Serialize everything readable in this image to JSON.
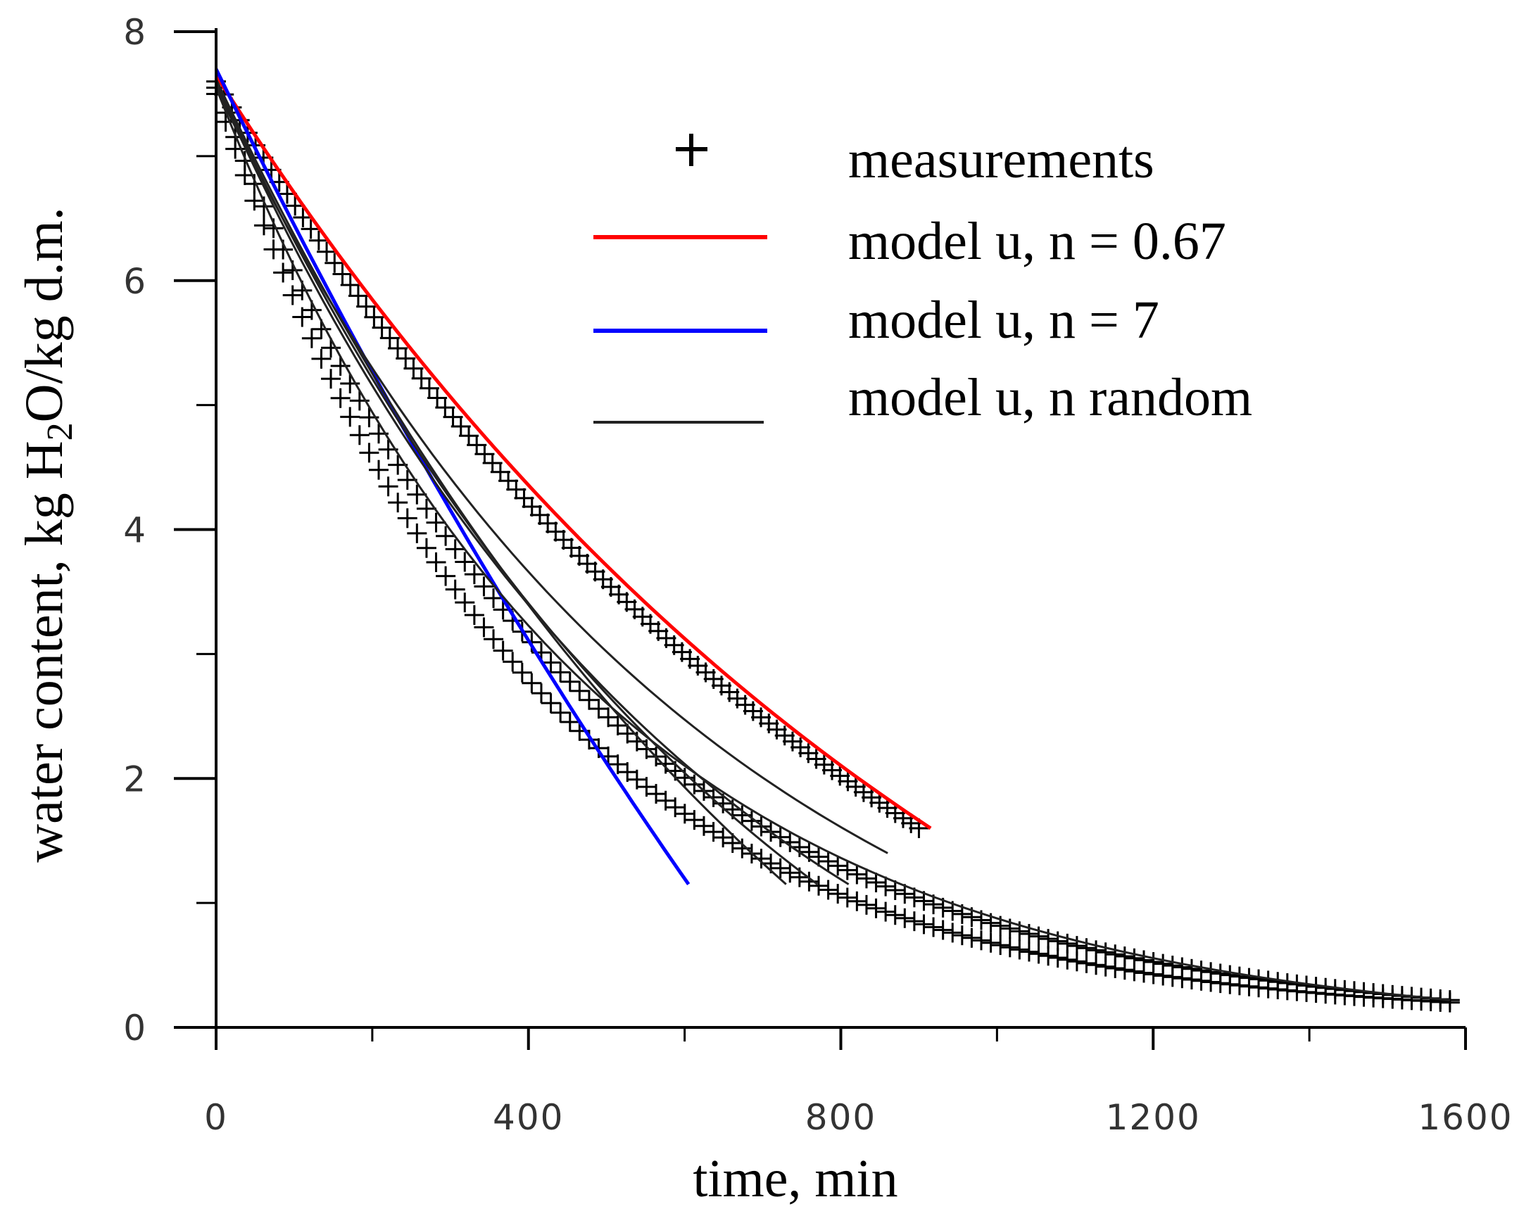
{
  "chart_data": {
    "type": "line",
    "xlabel": "time, min",
    "ylabel_parts": [
      "water content, kg H",
      "2",
      "O/kg d.m."
    ],
    "xlim": [
      0,
      1600
    ],
    "ylim": [
      0,
      8
    ],
    "x_major_ticks": [
      0,
      400,
      800,
      1200,
      1600
    ],
    "x_minor_ticks": [
      200,
      600,
      1000,
      1400
    ],
    "y_major_ticks": [
      0,
      2,
      4,
      6,
      8
    ],
    "y_minor_ticks": [
      1,
      3,
      5,
      7
    ],
    "legend": {
      "position": "top-right",
      "items": [
        {
          "label": "measurements",
          "kind": "marker",
          "color": "#000000"
        },
        {
          "label": "model u, n = 0.67",
          "kind": "line",
          "color": "#ff0000"
        },
        {
          "label": "model u, n = 7",
          "kind": "line",
          "color": "#0000ff"
        },
        {
          "label": "model u, n random",
          "kind": "line",
          "color": "#222222"
        }
      ]
    },
    "series": [
      {
        "name": "measurements A",
        "kind": "marker",
        "color": "#000000",
        "x0": 0,
        "y0": 7.6,
        "x1": 900,
        "y1": 1.6,
        "k": 0.00108,
        "count": 90
      },
      {
        "name": "measurements B",
        "kind": "marker",
        "color": "#000000",
        "x0": 0,
        "y0": 7.55,
        "x1": 1580,
        "y1": 0.22,
        "k": 0.0022,
        "count": 130
      },
      {
        "name": "measurements C",
        "kind": "marker",
        "color": "#000000",
        "x0": 0,
        "y0": 7.5,
        "x1": 1580,
        "y1": 0.2,
        "k": 0.0025,
        "count": 130
      },
      {
        "name": "model u, n = 0.67",
        "kind": "line",
        "color": "#ff0000",
        "x0": 0,
        "y0": 7.65,
        "x1": 915,
        "y1": 1.6,
        "k": 0.00095,
        "count": 60
      },
      {
        "name": "model u, n = 7",
        "kind": "line",
        "color": "#0000ff",
        "x0": 0,
        "y0": 7.7,
        "x1": 605,
        "y1": 1.15,
        "k": 0.0006,
        "count": 60
      },
      {
        "name": "model u, n random 1",
        "kind": "line",
        "color": "#222222",
        "x0": 0,
        "y0": 7.62,
        "x1": 730,
        "y1": 1.15,
        "k": 0.0012,
        "count": 60
      },
      {
        "name": "model u, n random 2",
        "kind": "line",
        "color": "#222222",
        "x0": 0,
        "y0": 7.6,
        "x1": 770,
        "y1": 1.15,
        "k": 0.0014,
        "count": 60
      },
      {
        "name": "model u, n random 3",
        "kind": "line",
        "color": "#222222",
        "x0": 0,
        "y0": 7.58,
        "x1": 810,
        "y1": 1.15,
        "k": 0.0016,
        "count": 60
      },
      {
        "name": "model u, n random 4",
        "kind": "line",
        "color": "#222222",
        "x0": 0,
        "y0": 7.55,
        "x1": 860,
        "y1": 1.4,
        "k": 0.0016,
        "count": 60
      },
      {
        "name": "model u, n random 5",
        "kind": "line",
        "color": "#222222",
        "x0": 0,
        "y0": 7.55,
        "x1": 1580,
        "y1": 0.22,
        "k": 0.0021,
        "count": 80
      }
    ]
  }
}
